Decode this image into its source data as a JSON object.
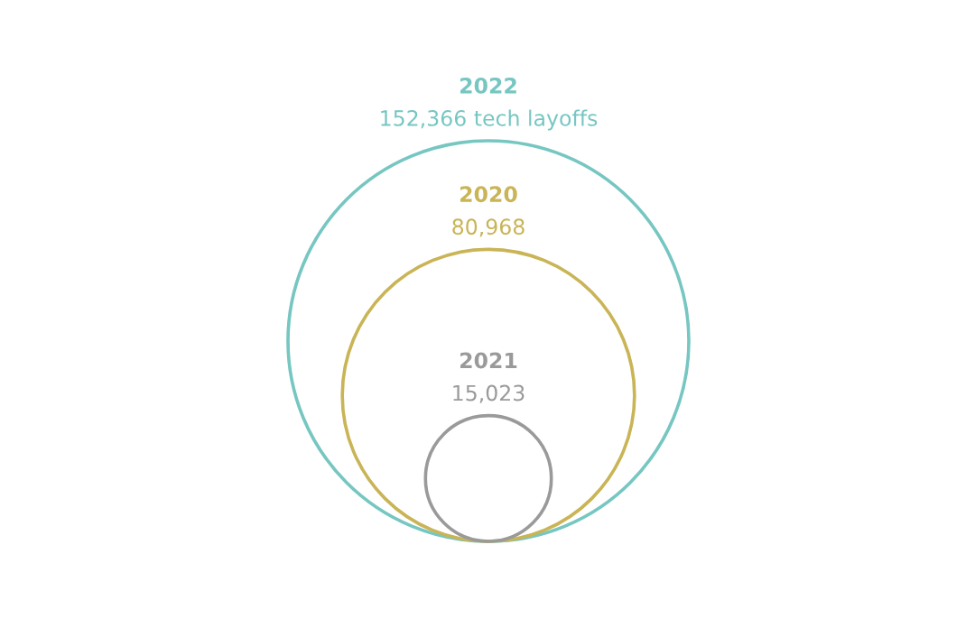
{
  "chart_data": {
    "type": "other",
    "categories": [
      "2022",
      "2020",
      "2021"
    ],
    "values": [
      152366,
      80968,
      15023
    ],
    "value_labels": [
      "152,366 tech layoffs",
      "80,968",
      "15,023"
    ],
    "colors": [
      "#76c6c2",
      "#c9b456",
      "#9a9a9a"
    ]
  }
}
